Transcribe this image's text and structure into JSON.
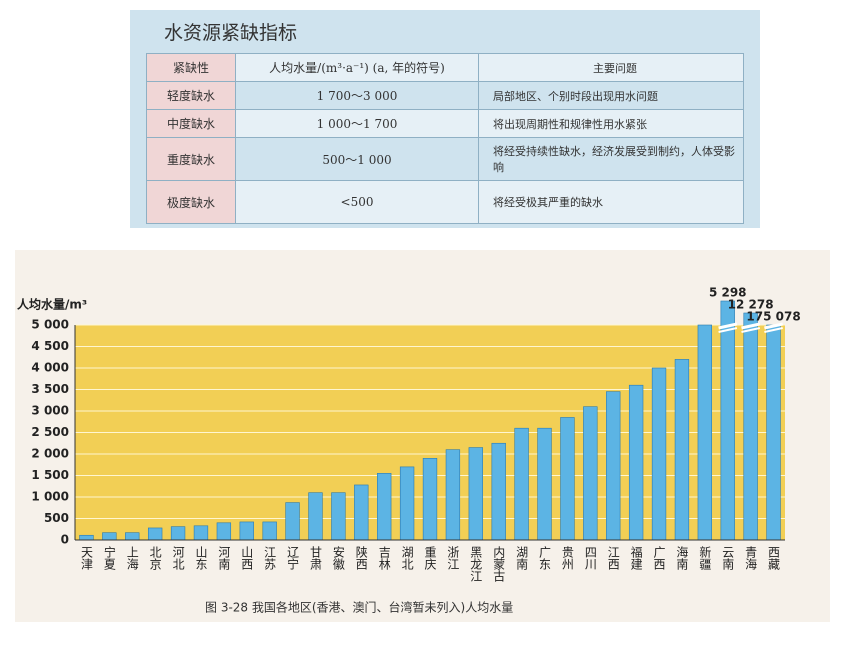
{
  "table": {
    "title": "水资源紧缺指标",
    "header": [
      "紧缺性",
      "人均水量/(m³·a⁻¹) (a, 年的符号)",
      "主要问题"
    ],
    "rows": [
      [
        "轻度缺水",
        "1 700～3 000",
        "局部地区、个别时段出现用水问题"
      ],
      [
        "中度缺水",
        "1 000～1 700",
        "将出现周期性和规律性用水紧张"
      ],
      [
        "重度缺水",
        "500～1 000",
        "将经受持续性缺水，经济发展受到制约，人体受影响"
      ],
      [
        "极度缺水",
        "<500",
        "将经受极其严重的缺水"
      ]
    ]
  },
  "chart_data": {
    "type": "bar",
    "y_label": "人均水量/m³",
    "caption": "图 3-28   我国各地区(香港、澳门、台湾暂未列入)人均水量",
    "categories": [
      "天津",
      "宁夏",
      "上海",
      "北京",
      "河北",
      "山东",
      "河南",
      "山西",
      "江苏",
      "辽宁",
      "甘肃",
      "安徽",
      "陕西",
      "吉林",
      "湖北",
      "重庆",
      "浙江",
      "黑龙江",
      "内蒙古",
      "湖南",
      "广东",
      "贵州",
      "四川",
      "江西",
      "福建",
      "广西",
      "海南",
      "新疆",
      "云南",
      "青海",
      "西藏"
    ],
    "values": [
      110,
      170,
      170,
      280,
      310,
      330,
      400,
      420,
      420,
      870,
      1100,
      1100,
      1280,
      1550,
      1700,
      1900,
      2100,
      2150,
      2250,
      2600,
      2600,
      2850,
      3100,
      3450,
      3600,
      4000,
      4200,
      5000,
      5298,
      12278,
      175078
    ],
    "value_labels": [
      null,
      null,
      null,
      null,
      null,
      null,
      null,
      null,
      null,
      null,
      null,
      null,
      null,
      null,
      null,
      null,
      null,
      null,
      null,
      null,
      null,
      null,
      null,
      null,
      null,
      null,
      null,
      null,
      "5 298",
      "12 278",
      "175 078"
    ],
    "color": "#5cb4e4",
    "ylim": [
      0,
      5000
    ],
    "yticks": [
      0,
      500,
      {
        "value": 1000,
        "label": "1 000"
      },
      {
        "value": 1500,
        "label": "1 500"
      },
      {
        "value": 2000,
        "label": "2 000"
      },
      {
        "value": 2500,
        "label": "2 500"
      },
      {
        "value": 3000,
        "label": "3 000"
      },
      {
        "value": 3500,
        "label": "3 500"
      },
      {
        "value": 4000,
        "label": "4 000"
      },
      {
        "value": 4500,
        "label": "4 500"
      },
      {
        "value": 5000,
        "label": "5 000"
      }
    ],
    "grid": true
  }
}
